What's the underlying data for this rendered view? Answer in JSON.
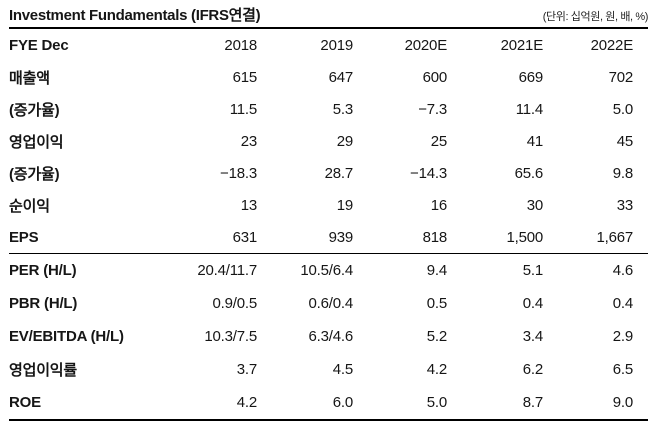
{
  "page": {
    "title": "Investment Fundamentals (IFRS연결)",
    "unit_note": "(단위: 십억원, 원, 배, %)"
  },
  "colors": {
    "background": "#ffffff",
    "text": "#161616",
    "rule": "#000000"
  },
  "table": {
    "header": {
      "label": "FYE Dec",
      "years": [
        "2018",
        "2019",
        "2020E",
        "2021E",
        "2022E"
      ]
    },
    "sections": [
      {
        "rows": [
          {
            "label": "매출액",
            "values": [
              "615",
              "647",
              "600",
              "669",
              "702"
            ]
          },
          {
            "label": "(증가율)",
            "values": [
              "11.5",
              "5.3",
              "−7.3",
              "11.4",
              "5.0"
            ]
          },
          {
            "label": "영업이익",
            "values": [
              "23",
              "29",
              "25",
              "41",
              "45"
            ]
          },
          {
            "label": "(증가율)",
            "values": [
              "−18.3",
              "28.7",
              "−14.3",
              "65.6",
              "9.8"
            ]
          },
          {
            "label": "순이익",
            "values": [
              "13",
              "19",
              "16",
              "30",
              "33"
            ]
          },
          {
            "label": "EPS",
            "values": [
              "631",
              "939",
              "818",
              "1,500",
              "1,667"
            ]
          }
        ]
      },
      {
        "rows": [
          {
            "label": "PER (H/L)",
            "values": [
              "20.4/11.7",
              "10.5/6.4",
              "9.4",
              "5.1",
              "4.6"
            ]
          },
          {
            "label": "PBR (H/L)",
            "values": [
              "0.9/0.5",
              "0.6/0.4",
              "0.5",
              "0.4",
              "0.4"
            ]
          },
          {
            "label": "EV/EBITDA (H/L)",
            "values": [
              "10.3/7.5",
              "6.3/4.6",
              "5.2",
              "3.4",
              "2.9"
            ]
          },
          {
            "label": "영업이익률",
            "values": [
              "3.7",
              "4.5",
              "4.2",
              "6.2",
              "6.5"
            ]
          },
          {
            "label": "ROE",
            "values": [
              "4.2",
              "6.0",
              "5.0",
              "8.7",
              "9.0"
            ]
          }
        ]
      }
    ]
  }
}
